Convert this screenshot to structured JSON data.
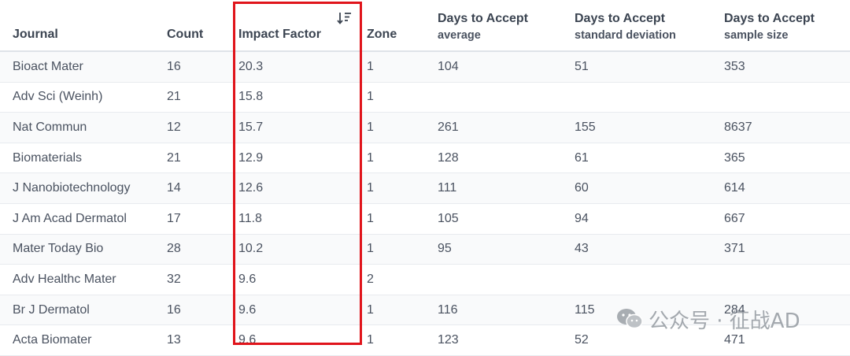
{
  "columns": {
    "journal": "Journal",
    "count": "Count",
    "impact_factor": "Impact Factor",
    "zone": "Zone",
    "avg": {
      "main": "Days to Accept",
      "sub": "average"
    },
    "sd": {
      "main": "Days to Accept",
      "sub": "standard deviation"
    },
    "ss": {
      "main": "Days to Accept",
      "sub": "sample size"
    }
  },
  "sort": {
    "column": "impact_factor",
    "direction": "descending",
    "icon": "sort-descending-icon"
  },
  "rows": [
    {
      "journal": "Bioact Mater",
      "count": "16",
      "if": "20.3",
      "zone": "1",
      "avg": "104",
      "sd": "51",
      "ss": "353"
    },
    {
      "journal": "Adv Sci (Weinh)",
      "count": "21",
      "if": "15.8",
      "zone": "1",
      "avg": "",
      "sd": "",
      "ss": ""
    },
    {
      "journal": "Nat Commun",
      "count": "12",
      "if": "15.7",
      "zone": "1",
      "avg": "261",
      "sd": "155",
      "ss": "8637"
    },
    {
      "journal": "Biomaterials",
      "count": "21",
      "if": "12.9",
      "zone": "1",
      "avg": "128",
      "sd": "61",
      "ss": "365"
    },
    {
      "journal": "J Nanobiotechnology",
      "count": "14",
      "if": "12.6",
      "zone": "1",
      "avg": "111",
      "sd": "60",
      "ss": "614"
    },
    {
      "journal": "J Am Acad Dermatol",
      "count": "17",
      "if": "11.8",
      "zone": "1",
      "avg": "105",
      "sd": "94",
      "ss": "667"
    },
    {
      "journal": "Mater Today Bio",
      "count": "28",
      "if": "10.2",
      "zone": "1",
      "avg": "95",
      "sd": "43",
      "ss": "371"
    },
    {
      "journal": "Adv Healthc Mater",
      "count": "32",
      "if": "9.6",
      "zone": "2",
      "avg": "",
      "sd": "",
      "ss": ""
    },
    {
      "journal": "Br J Dermatol",
      "count": "16",
      "if": "9.6",
      "zone": "1",
      "avg": "116",
      "sd": "115",
      "ss": "284"
    },
    {
      "journal": "Acta Biomater",
      "count": "13",
      "if": "9.6",
      "zone": "1",
      "avg": "123",
      "sd": "52",
      "ss": "471"
    }
  ],
  "highlight": {
    "color": "#e0141b",
    "target": "impact_factor"
  },
  "watermark": {
    "icon": "wechat-icon",
    "text": "公众号 · 征战AD"
  }
}
